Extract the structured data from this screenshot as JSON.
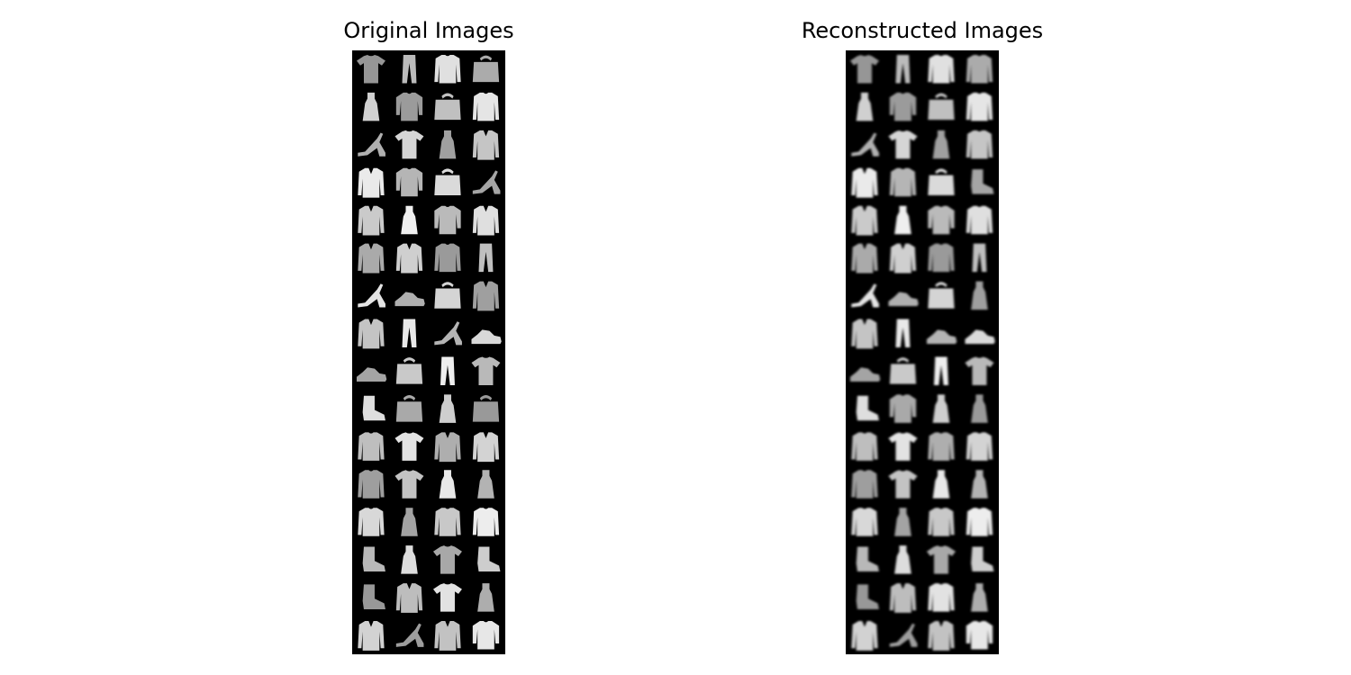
{
  "figure": {
    "panels": [
      {
        "title": "Original Images",
        "kind": "original",
        "rows": 16,
        "cols": 4,
        "items": [
          "tshirt",
          "trouser",
          "pullover",
          "bag",
          "dress",
          "shirt",
          "bag",
          "pullover",
          "sandal",
          "tshirt",
          "dress",
          "coat",
          "coat",
          "shirt",
          "bag",
          "sandal",
          "coat",
          "dress",
          "shirt",
          "coat",
          "coat",
          "coat",
          "pullover",
          "trouser",
          "sandal",
          "sneaker",
          "bag",
          "coat",
          "coat",
          "trouser",
          "sandal",
          "sneaker",
          "sneaker",
          "bag",
          "trouser",
          "tshirt",
          "boot",
          "bag",
          "dress",
          "bag",
          "pullover",
          "tshirt",
          "coat",
          "coat",
          "pullover",
          "tshirt",
          "dress",
          "dress",
          "pullover",
          "dress",
          "pullover",
          "pullover",
          "boot",
          "dress",
          "tshirt",
          "boot",
          "boot",
          "coat",
          "tshirt",
          "dress",
          "coat",
          "sandal",
          "coat",
          "shirt"
        ]
      },
      {
        "title": "Reconstructed Images",
        "kind": "reconstructed",
        "rows": 16,
        "cols": 4,
        "items": [
          "tshirt",
          "trouser",
          "pullover",
          "pullover",
          "dress",
          "shirt",
          "bag",
          "pullover",
          "sandal",
          "tshirt",
          "dress",
          "pullover",
          "coat",
          "pullover",
          "bag",
          "boot",
          "coat",
          "dress",
          "shirt",
          "pullover",
          "coat",
          "coat",
          "pullover",
          "trouser",
          "sandal",
          "sneaker",
          "bag",
          "dress",
          "coat",
          "trouser",
          "sneaker",
          "sneaker",
          "sneaker",
          "bag",
          "trouser",
          "tshirt",
          "boot",
          "shirt",
          "dress",
          "dress",
          "pullover",
          "tshirt",
          "pullover",
          "pullover",
          "pullover",
          "tshirt",
          "dress",
          "dress",
          "pullover",
          "dress",
          "pullover",
          "pullover",
          "boot",
          "dress",
          "tshirt",
          "boot",
          "boot",
          "coat",
          "pullover",
          "dress",
          "coat",
          "sandal",
          "coat",
          "shirt"
        ]
      }
    ]
  }
}
